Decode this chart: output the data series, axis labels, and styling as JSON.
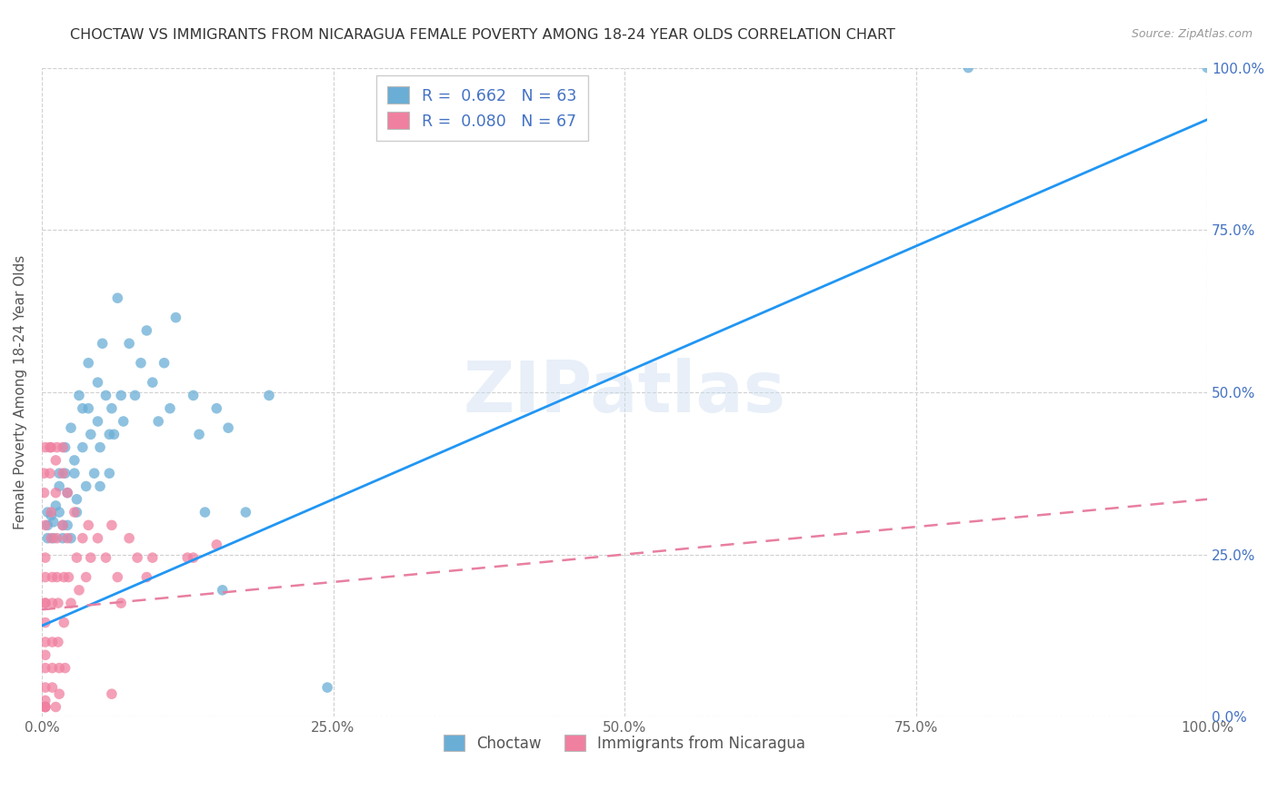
{
  "title": "CHOCTAW VS IMMIGRANTS FROM NICARAGUA FEMALE POVERTY AMONG 18-24 YEAR OLDS CORRELATION CHART",
  "source": "Source: ZipAtlas.com",
  "ylabel": "Female Poverty Among 18-24 Year Olds",
  "xlim": [
    0,
    1.0
  ],
  "ylim": [
    0,
    1.0
  ],
  "xticks": [
    0.0,
    0.25,
    0.5,
    0.75,
    1.0
  ],
  "xtick_labels": [
    "0.0%",
    "25.0%",
    "50.0%",
    "75.0%",
    "100.0%"
  ],
  "ytick_vals": [
    0.0,
    0.25,
    0.5,
    0.75,
    1.0
  ],
  "ytick_labels_right": [
    "0.0%",
    "25.0%",
    "50.0%",
    "75.0%",
    "100.0%"
  ],
  "watermark": "ZIPatlas",
  "choctaw_color": "#6aaed6",
  "nicaragua_color": "#f080a0",
  "choctaw_line_color": "#2196f3",
  "nicaragua_line_color": "#e87fa0",
  "background_color": "#ffffff",
  "grid_color": "#d0d0d0",
  "choctaw_R": 0.662,
  "choctaw_N": 63,
  "nicaragua_R": 0.08,
  "nicaragua_N": 67,
  "choctaw_line_x0": 0.0,
  "choctaw_line_y0": 0.14,
  "choctaw_line_x1": 1.0,
  "choctaw_line_y1": 0.92,
  "nicaragua_line_x0": 0.0,
  "nicaragua_line_y0": 0.165,
  "nicaragua_line_x1": 1.0,
  "nicaragua_line_y1": 0.335,
  "choctaw_points": [
    [
      0.005,
      0.295
    ],
    [
      0.005,
      0.275
    ],
    [
      0.005,
      0.315
    ],
    [
      0.008,
      0.31
    ],
    [
      0.01,
      0.3
    ],
    [
      0.01,
      0.275
    ],
    [
      0.012,
      0.325
    ],
    [
      0.015,
      0.375
    ],
    [
      0.015,
      0.355
    ],
    [
      0.015,
      0.315
    ],
    [
      0.018,
      0.275
    ],
    [
      0.018,
      0.295
    ],
    [
      0.02,
      0.415
    ],
    [
      0.02,
      0.375
    ],
    [
      0.022,
      0.345
    ],
    [
      0.022,
      0.295
    ],
    [
      0.025,
      0.275
    ],
    [
      0.025,
      0.445
    ],
    [
      0.028,
      0.395
    ],
    [
      0.028,
      0.375
    ],
    [
      0.03,
      0.335
    ],
    [
      0.03,
      0.315
    ],
    [
      0.032,
      0.495
    ],
    [
      0.035,
      0.475
    ],
    [
      0.035,
      0.415
    ],
    [
      0.038,
      0.355
    ],
    [
      0.04,
      0.545
    ],
    [
      0.04,
      0.475
    ],
    [
      0.042,
      0.435
    ],
    [
      0.045,
      0.375
    ],
    [
      0.048,
      0.515
    ],
    [
      0.048,
      0.455
    ],
    [
      0.05,
      0.415
    ],
    [
      0.05,
      0.355
    ],
    [
      0.052,
      0.575
    ],
    [
      0.055,
      0.495
    ],
    [
      0.058,
      0.435
    ],
    [
      0.058,
      0.375
    ],
    [
      0.06,
      0.475
    ],
    [
      0.062,
      0.435
    ],
    [
      0.065,
      0.645
    ],
    [
      0.068,
      0.495
    ],
    [
      0.07,
      0.455
    ],
    [
      0.075,
      0.575
    ],
    [
      0.08,
      0.495
    ],
    [
      0.085,
      0.545
    ],
    [
      0.09,
      0.595
    ],
    [
      0.095,
      0.515
    ],
    [
      0.1,
      0.455
    ],
    [
      0.105,
      0.545
    ],
    [
      0.11,
      0.475
    ],
    [
      0.115,
      0.615
    ],
    [
      0.13,
      0.495
    ],
    [
      0.135,
      0.435
    ],
    [
      0.14,
      0.315
    ],
    [
      0.15,
      0.475
    ],
    [
      0.155,
      0.195
    ],
    [
      0.16,
      0.445
    ],
    [
      0.175,
      0.315
    ],
    [
      0.195,
      0.495
    ],
    [
      0.245,
      0.045
    ],
    [
      0.795,
      1.0
    ],
    [
      1.0,
      1.0
    ]
  ],
  "nicaragua_points": [
    [
      0.002,
      0.375
    ],
    [
      0.002,
      0.345
    ],
    [
      0.003,
      0.295
    ],
    [
      0.003,
      0.245
    ],
    [
      0.003,
      0.215
    ],
    [
      0.003,
      0.175
    ],
    [
      0.003,
      0.145
    ],
    [
      0.003,
      0.115
    ],
    [
      0.003,
      0.095
    ],
    [
      0.003,
      0.075
    ],
    [
      0.003,
      0.045
    ],
    [
      0.003,
      0.025
    ],
    [
      0.003,
      0.015
    ],
    [
      0.007,
      0.415
    ],
    [
      0.007,
      0.375
    ],
    [
      0.008,
      0.315
    ],
    [
      0.008,
      0.275
    ],
    [
      0.009,
      0.215
    ],
    [
      0.009,
      0.175
    ],
    [
      0.009,
      0.115
    ],
    [
      0.009,
      0.075
    ],
    [
      0.009,
      0.045
    ],
    [
      0.012,
      0.395
    ],
    [
      0.012,
      0.345
    ],
    [
      0.013,
      0.275
    ],
    [
      0.013,
      0.215
    ],
    [
      0.014,
      0.175
    ],
    [
      0.014,
      0.115
    ],
    [
      0.015,
      0.075
    ],
    [
      0.015,
      0.035
    ],
    [
      0.018,
      0.375
    ],
    [
      0.018,
      0.295
    ],
    [
      0.019,
      0.215
    ],
    [
      0.019,
      0.145
    ],
    [
      0.02,
      0.075
    ],
    [
      0.022,
      0.345
    ],
    [
      0.022,
      0.275
    ],
    [
      0.023,
      0.215
    ],
    [
      0.025,
      0.175
    ],
    [
      0.028,
      0.315
    ],
    [
      0.03,
      0.245
    ],
    [
      0.032,
      0.195
    ],
    [
      0.035,
      0.275
    ],
    [
      0.038,
      0.215
    ],
    [
      0.04,
      0.295
    ],
    [
      0.042,
      0.245
    ],
    [
      0.048,
      0.275
    ],
    [
      0.055,
      0.245
    ],
    [
      0.06,
      0.295
    ],
    [
      0.065,
      0.215
    ],
    [
      0.068,
      0.175
    ],
    [
      0.075,
      0.275
    ],
    [
      0.082,
      0.245
    ],
    [
      0.09,
      0.215
    ],
    [
      0.095,
      0.245
    ],
    [
      0.125,
      0.245
    ],
    [
      0.13,
      0.245
    ],
    [
      0.15,
      0.265
    ],
    [
      0.003,
      0.415
    ],
    [
      0.008,
      0.415
    ],
    [
      0.013,
      0.415
    ],
    [
      0.018,
      0.415
    ],
    [
      0.003,
      0.015
    ],
    [
      0.003,
      0.015
    ],
    [
      0.012,
      0.015
    ],
    [
      0.06,
      0.035
    ],
    [
      0.003,
      0.175
    ]
  ]
}
